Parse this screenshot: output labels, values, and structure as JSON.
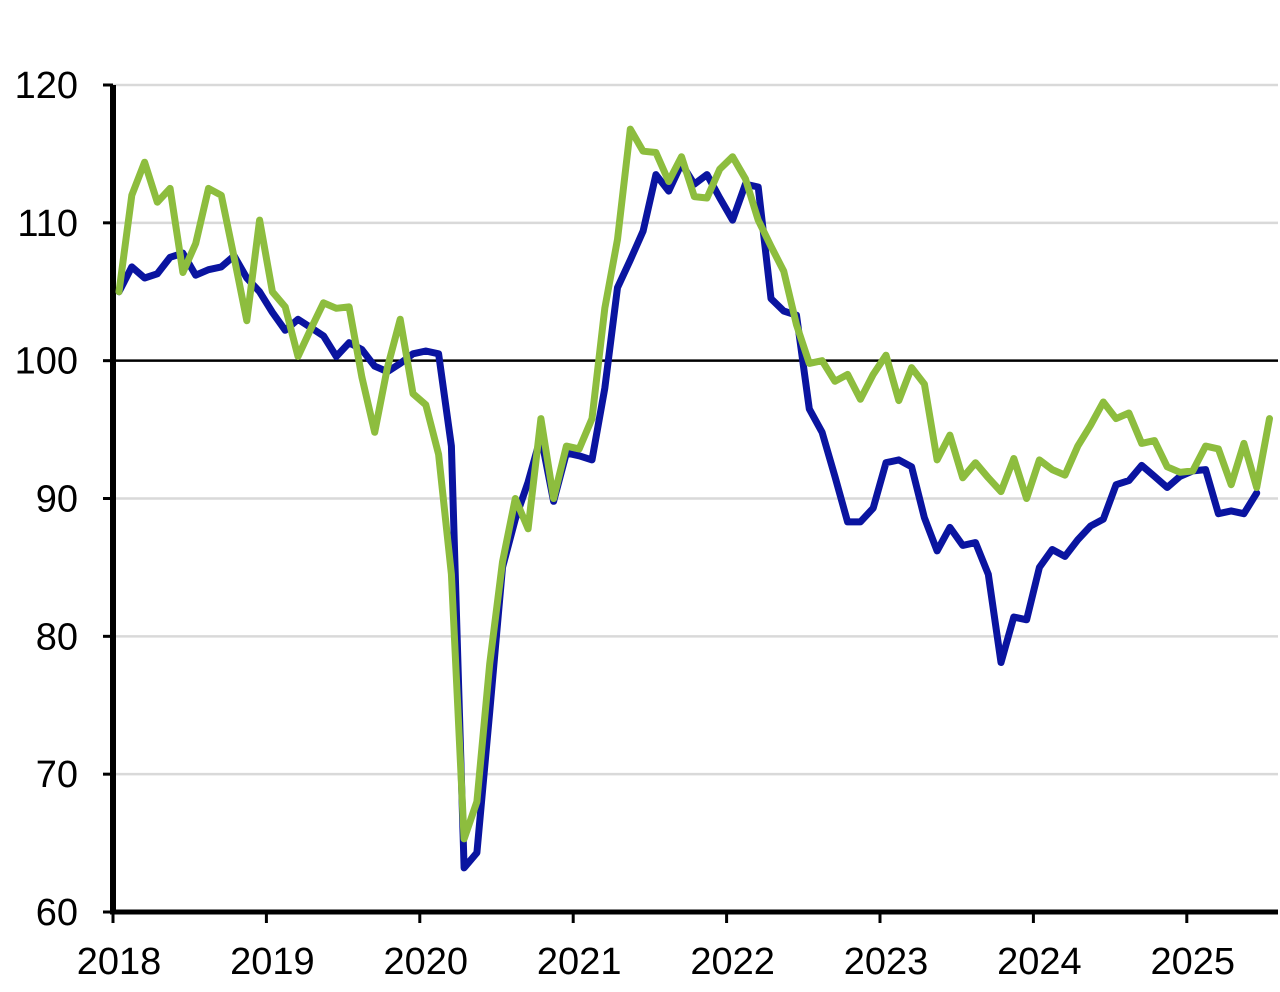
{
  "chart_data": {
    "type": "line",
    "title": "",
    "xlabel": "",
    "ylabel": "",
    "ylim": [
      60,
      120
    ],
    "xlim": [
      "2018-01",
      "2025-08"
    ],
    "yticks": [
      "60",
      "70",
      "80",
      "90",
      "100",
      "110",
      "120"
    ],
    "xticks": [
      "2018",
      "2019",
      "2020",
      "2021",
      "2022",
      "2023",
      "2024",
      "2025"
    ],
    "grid": true,
    "reference_line": 100,
    "legend": "none",
    "colors": {
      "series_blue": "#0a14a0",
      "series_green": "#8dbd3e",
      "grid": "#d9d9d9",
      "axis": "#000000"
    },
    "series": [
      {
        "points": [
          [
            "2018-01",
            105.0
          ],
          [
            "2018-02",
            106.8
          ],
          [
            "2018-03",
            106.0
          ],
          [
            "2018-04",
            106.3
          ],
          [
            "2018-05",
            107.5
          ],
          [
            "2018-06",
            107.8
          ],
          [
            "2018-07",
            106.2
          ],
          [
            "2018-08",
            106.6
          ],
          [
            "2018-09",
            106.8
          ],
          [
            "2018-10",
            107.6
          ],
          [
            "2018-11",
            106.0
          ],
          [
            "2018-12",
            105.0
          ],
          [
            "2019-01",
            103.5
          ],
          [
            "2019-02",
            102.2
          ],
          [
            "2019-03",
            103.0
          ],
          [
            "2019-04",
            102.4
          ],
          [
            "2019-05",
            101.8
          ],
          [
            "2019-06",
            100.3
          ],
          [
            "2019-07",
            101.3
          ],
          [
            "2019-08",
            100.8
          ],
          [
            "2019-09",
            99.6
          ],
          [
            "2019-10",
            99.2
          ],
          [
            "2019-11",
            99.8
          ],
          [
            "2019-12",
            100.5
          ],
          [
            "2020-01",
            100.7
          ],
          [
            "2020-02",
            100.5
          ],
          [
            "2020-03",
            93.8
          ],
          [
            "2020-04",
            63.2
          ],
          [
            "2020-05",
            64.3
          ],
          [
            "2020-06",
            74.5
          ],
          [
            "2020-07",
            85.0
          ],
          [
            "2020-08",
            88.5
          ],
          [
            "2020-09",
            91.2
          ],
          [
            "2020-10",
            94.5
          ],
          [
            "2020-11",
            89.8
          ],
          [
            "2020-12",
            93.3
          ],
          [
            "2021-01",
            93.1
          ],
          [
            "2021-02",
            92.8
          ],
          [
            "2021-03",
            98.0
          ],
          [
            "2021-04",
            105.3
          ],
          [
            "2021-05",
            107.3
          ],
          [
            "2021-06",
            109.4
          ],
          [
            "2021-07",
            113.5
          ],
          [
            "2021-08",
            112.3
          ],
          [
            "2021-09",
            114.3
          ],
          [
            "2021-10",
            112.8
          ],
          [
            "2021-11",
            113.5
          ],
          [
            "2021-12",
            111.8
          ],
          [
            "2022-01",
            110.2
          ],
          [
            "2022-02",
            112.8
          ],
          [
            "2022-03",
            112.6
          ],
          [
            "2022-04",
            104.5
          ],
          [
            "2022-05",
            103.6
          ],
          [
            "2022-06",
            103.3
          ],
          [
            "2022-07",
            96.5
          ],
          [
            "2022-08",
            94.8
          ],
          [
            "2022-09",
            91.6
          ],
          [
            "2022-10",
            88.3
          ],
          [
            "2022-11",
            88.3
          ],
          [
            "2022-12",
            89.3
          ],
          [
            "2023-01",
            92.6
          ],
          [
            "2023-02",
            92.8
          ],
          [
            "2023-03",
            92.3
          ],
          [
            "2023-04",
            88.6
          ],
          [
            "2023-05",
            86.2
          ],
          [
            "2023-06",
            87.9
          ],
          [
            "2023-07",
            86.6
          ],
          [
            "2023-08",
            86.8
          ],
          [
            "2023-09",
            84.5
          ],
          [
            "2023-10",
            78.1
          ],
          [
            "2023-11",
            81.4
          ],
          [
            "2023-12",
            81.2
          ],
          [
            "2024-01",
            85.0
          ],
          [
            "2024-02",
            86.3
          ],
          [
            "2024-03",
            85.8
          ],
          [
            "2024-04",
            87.0
          ],
          [
            "2024-05",
            88.0
          ],
          [
            "2024-06",
            88.5
          ],
          [
            "2024-07",
            91.0
          ],
          [
            "2024-08",
            91.3
          ],
          [
            "2024-09",
            92.4
          ],
          [
            "2024-10",
            91.6
          ],
          [
            "2024-11",
            90.8
          ],
          [
            "2024-12",
            91.6
          ],
          [
            "2025-01",
            92.0
          ],
          [
            "2025-02",
            92.1
          ],
          [
            "2025-03",
            88.9
          ],
          [
            "2025-04",
            89.1
          ],
          [
            "2025-05",
            88.9
          ],
          [
            "2025-06",
            90.4
          ]
        ]
      },
      {
        "points": [
          [
            "2018-01",
            105.0
          ],
          [
            "2018-02",
            112.0
          ],
          [
            "2018-03",
            114.4
          ],
          [
            "2018-04",
            111.5
          ],
          [
            "2018-05",
            112.5
          ],
          [
            "2018-06",
            106.4
          ],
          [
            "2018-07",
            108.5
          ],
          [
            "2018-08",
            112.5
          ],
          [
            "2018-09",
            112.0
          ],
          [
            "2018-10",
            107.5
          ],
          [
            "2018-11",
            102.9
          ],
          [
            "2018-12",
            110.2
          ],
          [
            "2019-01",
            105.0
          ],
          [
            "2019-02",
            103.9
          ],
          [
            "2019-03",
            100.3
          ],
          [
            "2019-04",
            102.3
          ],
          [
            "2019-05",
            104.2
          ],
          [
            "2019-06",
            103.8
          ],
          [
            "2019-07",
            103.9
          ],
          [
            "2019-08",
            98.8
          ],
          [
            "2019-09",
            94.8
          ],
          [
            "2019-10",
            99.5
          ],
          [
            "2019-11",
            103.0
          ],
          [
            "2019-12",
            97.6
          ],
          [
            "2020-01",
            96.8
          ],
          [
            "2020-02",
            93.2
          ],
          [
            "2020-03",
            84.5
          ],
          [
            "2020-04",
            65.3
          ],
          [
            "2020-05",
            68.0
          ],
          [
            "2020-06",
            78.0
          ],
          [
            "2020-07",
            85.4
          ],
          [
            "2020-08",
            90.0
          ],
          [
            "2020-09",
            87.8
          ],
          [
            "2020-10",
            95.8
          ],
          [
            "2020-11",
            90.0
          ],
          [
            "2020-12",
            93.8
          ],
          [
            "2021-01",
            93.6
          ],
          [
            "2021-02",
            95.8
          ],
          [
            "2021-03",
            103.8
          ],
          [
            "2021-04",
            108.8
          ],
          [
            "2021-05",
            116.8
          ],
          [
            "2021-06",
            115.2
          ],
          [
            "2021-07",
            115.1
          ],
          [
            "2021-08",
            113.0
          ],
          [
            "2021-09",
            114.8
          ],
          [
            "2021-10",
            111.9
          ],
          [
            "2021-11",
            111.8
          ],
          [
            "2021-12",
            113.9
          ],
          [
            "2022-01",
            114.8
          ],
          [
            "2022-02",
            113.2
          ],
          [
            "2022-03",
            110.2
          ],
          [
            "2022-04",
            108.3
          ],
          [
            "2022-05",
            106.5
          ],
          [
            "2022-06",
            102.6
          ],
          [
            "2022-07",
            99.8
          ],
          [
            "2022-08",
            100.0
          ],
          [
            "2022-09",
            98.5
          ],
          [
            "2022-10",
            99.0
          ],
          [
            "2022-11",
            97.2
          ],
          [
            "2022-12",
            99.0
          ],
          [
            "2023-01",
            100.4
          ],
          [
            "2023-02",
            97.1
          ],
          [
            "2023-03",
            99.5
          ],
          [
            "2023-04",
            98.3
          ],
          [
            "2023-05",
            92.8
          ],
          [
            "2023-06",
            94.6
          ],
          [
            "2023-07",
            91.5
          ],
          [
            "2023-08",
            92.6
          ],
          [
            "2023-09",
            91.5
          ],
          [
            "2023-10",
            90.5
          ],
          [
            "2023-11",
            92.9
          ],
          [
            "2023-12",
            90.0
          ],
          [
            "2024-01",
            92.8
          ],
          [
            "2024-02",
            92.1
          ],
          [
            "2024-03",
            91.7
          ],
          [
            "2024-04",
            93.8
          ],
          [
            "2024-05",
            95.3
          ],
          [
            "2024-06",
            97.0
          ],
          [
            "2024-07",
            95.8
          ],
          [
            "2024-08",
            96.2
          ],
          [
            "2024-09",
            94.0
          ],
          [
            "2024-10",
            94.2
          ],
          [
            "2024-11",
            92.3
          ],
          [
            "2024-12",
            91.9
          ],
          [
            "2025-01",
            92.0
          ],
          [
            "2025-02",
            93.8
          ],
          [
            "2025-03",
            93.6
          ],
          [
            "2025-04",
            91.0
          ],
          [
            "2025-05",
            94.0
          ],
          [
            "2025-06",
            90.8
          ],
          [
            "2025-07",
            95.8
          ]
        ]
      }
    ]
  }
}
